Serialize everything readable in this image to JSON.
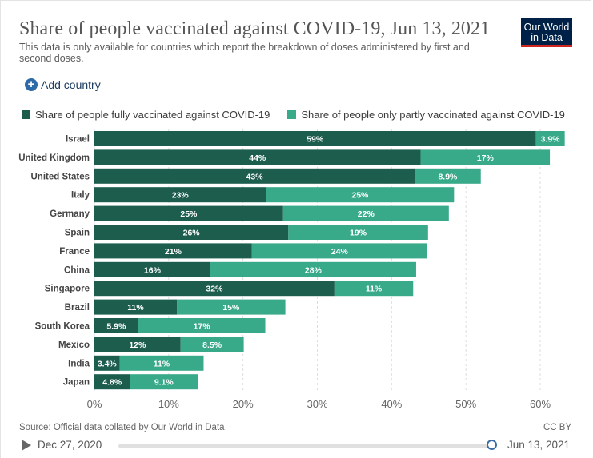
{
  "header": {
    "title": "Share of people vaccinated against COVID-19, Jun 13, 2021",
    "subtitle": "This data is only available for countries which report the breakdown of doses administered by first and second doses.",
    "logo_line1": "Our World",
    "logo_line2": "in Data"
  },
  "controls": {
    "add_country_label": "Add country"
  },
  "colors": {
    "fully": "#1d5d4e",
    "partly": "#38a989",
    "grid": "#dddddd",
    "label_text": "#ffffff",
    "axis_text": "#666666",
    "category_text": "#444444"
  },
  "chart_data": {
    "type": "bar",
    "orientation": "horizontal",
    "stacked": true,
    "title": "Share of people vaccinated against COVID-19, Jun 13, 2021",
    "categories": [
      "Israel",
      "United Kingdom",
      "United States",
      "Italy",
      "Germany",
      "Spain",
      "France",
      "China",
      "Singapore",
      "Brazil",
      "South Korea",
      "Mexico",
      "India",
      "Japan"
    ],
    "series": [
      {
        "name": "Share of people fully vaccinated against COVID-19",
        "values": [
          59.4,
          43.9,
          43.1,
          23.1,
          25.4,
          26.1,
          21.2,
          15.6,
          32.3,
          11.1,
          5.9,
          11.6,
          3.4,
          4.8
        ],
        "labels": [
          "59%",
          "44%",
          "43%",
          "23%",
          "25%",
          "26%",
          "21%",
          "16%",
          "32%",
          "11%",
          "5.9%",
          "12%",
          "3.4%",
          "4.8%"
        ]
      },
      {
        "name": "Share of people only partly vaccinated against COVID-19",
        "values": [
          3.9,
          17.4,
          8.9,
          25.3,
          22.3,
          18.8,
          23.6,
          27.7,
          10.6,
          14.6,
          17.1,
          8.5,
          11.3,
          9.1
        ],
        "labels": [
          "3.9%",
          "17%",
          "8.9%",
          "25%",
          "22%",
          "19%",
          "24%",
          "28%",
          "11%",
          "15%",
          "17%",
          "8.5%",
          "11%",
          "9.1%"
        ]
      }
    ],
    "xlim": [
      0,
      60
    ],
    "x_ticks": [
      0,
      10,
      20,
      30,
      40,
      50,
      60
    ],
    "x_tick_labels": [
      "0%",
      "10%",
      "20%",
      "30%",
      "40%",
      "50%",
      "60%"
    ],
    "xlabel": "",
    "ylabel": "",
    "grid": true,
    "legend_position": "top"
  },
  "footer": {
    "source": "Source: Official data collated by Our World in Data",
    "license": "CC BY"
  },
  "timeline": {
    "start_date": "Dec 27, 2020",
    "end_date": "Jun 13, 2021",
    "position": 1.0
  }
}
